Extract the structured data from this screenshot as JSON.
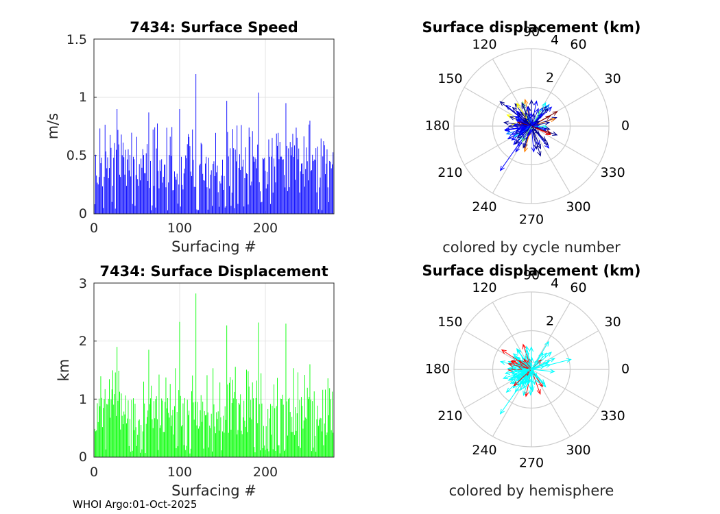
{
  "footer": "WHOI Argo:01-Oct-2025",
  "chart_data": [
    {
      "type": "bar",
      "title": "7434: Surface Speed",
      "xlabel": "Surfacing #",
      "ylabel": "m/s",
      "xlim": [
        0,
        280
      ],
      "ylim": [
        0,
        1.5
      ],
      "xticks": [
        "0",
        "100",
        "200"
      ],
      "yticks": [
        "0",
        "0.5",
        "1",
        "1.5"
      ],
      "grid": true,
      "color": "#0000ff",
      "peaks": [
        {
          "x": 27,
          "y": 0.9
        },
        {
          "x": 64,
          "y": 0.87
        },
        {
          "x": 100,
          "y": 0.9
        },
        {
          "x": 119,
          "y": 1.2
        },
        {
          "x": 155,
          "y": 0.97
        },
        {
          "x": 192,
          "y": 1.04
        },
        {
          "x": 224,
          "y": 0.95
        },
        {
          "x": 252,
          "y": 0.8
        }
      ]
    },
    {
      "type": "polar-quiver",
      "title": "Surface displacement (km)",
      "caption": "colored by cycle number",
      "rmax": 4,
      "rtick_labels": [
        "2",
        "4"
      ],
      "angle_labels": [
        "0",
        "30",
        "60",
        "90",
        "120",
        "150",
        "180",
        "210",
        "240",
        "270",
        "300",
        "330"
      ],
      "color_scheme": "cycle number (jet colormap)",
      "colors": [
        "#00008f",
        "#0000ff",
        "#0080ff",
        "#00ffff",
        "#80ff80",
        "#ffff00",
        "#ff8000",
        "#ff0000",
        "#800000"
      ]
    },
    {
      "type": "bar",
      "title": "7434: Surface Displacement",
      "xlabel": "Surfacing #",
      "ylabel": "km",
      "xlim": [
        0,
        280
      ],
      "ylim": [
        0,
        3
      ],
      "xticks": [
        "0",
        "100",
        "200"
      ],
      "yticks": [
        "0",
        "1",
        "2",
        "3"
      ],
      "grid": true,
      "color": "#00ff00",
      "peaks": [
        {
          "x": 27,
          "y": 1.9
        },
        {
          "x": 64,
          "y": 1.85
        },
        {
          "x": 100,
          "y": 2.33
        },
        {
          "x": 119,
          "y": 2.82
        },
        {
          "x": 155,
          "y": 2.27
        },
        {
          "x": 192,
          "y": 2.32
        },
        {
          "x": 224,
          "y": 2.3
        },
        {
          "x": 252,
          "y": 1.6
        }
      ]
    },
    {
      "type": "polar-quiver",
      "title": "Surface displacement (km)",
      "caption": "colored by hemisphere",
      "rmax": 4,
      "rtick_labels": [
        "2",
        "4"
      ],
      "angle_labels": [
        "0",
        "30",
        "60",
        "90",
        "120",
        "150",
        "180",
        "210",
        "240",
        "270",
        "300",
        "330"
      ],
      "color_scheme": "hemisphere",
      "colors": [
        "#00ffff",
        "#ff0000"
      ]
    }
  ]
}
